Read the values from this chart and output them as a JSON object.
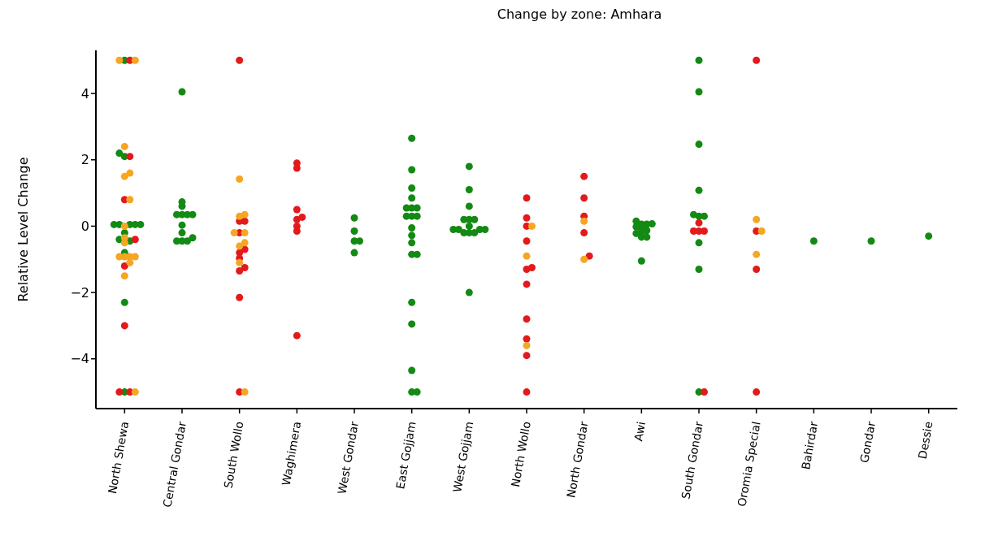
{
  "chart_data": {
    "type": "scatter",
    "title": "Change by zone: Amhara",
    "ylabel": "Relative Level Change",
    "categories": [
      "North Shewa",
      "Central Gondar",
      "South Wollo",
      "Waghimera",
      "West Gondar",
      "East Gojjam",
      "West Gojjam",
      "North Wollo",
      "North Gondar",
      "Awi",
      "South Gondar",
      "Oromia Special",
      "Bahirdar",
      "Gondar",
      "Dessie"
    ],
    "ylim": [
      -5.5,
      5.3
    ],
    "yticks": [
      -4,
      -2,
      0,
      2,
      4
    ],
    "grid": false,
    "legend": false,
    "marker": "circle",
    "series": [
      {
        "color": "#138a13",
        "x": [
          "North Shewa",
          "North Shewa",
          "North Shewa",
          "North Shewa",
          "North Shewa",
          "North Shewa",
          "North Shewa",
          "North Shewa",
          "North Shewa",
          "North Shewa",
          "North Shewa",
          "North Shewa",
          "North Shewa",
          "North Shewa",
          "Central Gondar",
          "Central Gondar",
          "Central Gondar",
          "Central Gondar",
          "Central Gondar",
          "Central Gondar",
          "Central Gondar",
          "Central Gondar",
          "Central Gondar",
          "Central Gondar",
          "Central Gondar",
          "Central Gondar",
          "Central Gondar",
          "West Gondar",
          "West Gondar",
          "West Gondar",
          "West Gondar",
          "West Gondar",
          "East Gojjam",
          "East Gojjam",
          "East Gojjam",
          "East Gojjam",
          "East Gojjam",
          "East Gojjam",
          "East Gojjam",
          "East Gojjam",
          "East Gojjam",
          "East Gojjam",
          "East Gojjam",
          "East Gojjam",
          "East Gojjam",
          "East Gojjam",
          "East Gojjam",
          "East Gojjam",
          "East Gojjam",
          "East Gojjam",
          "East Gojjam",
          "East Gojjam",
          "West Gojjam",
          "West Gojjam",
          "West Gojjam",
          "West Gojjam",
          "West Gojjam",
          "West Gojjam",
          "West Gojjam",
          "West Gojjam",
          "West Gojjam",
          "West Gojjam",
          "West Gojjam",
          "West Gojjam",
          "West Gojjam",
          "West Gojjam",
          "West Gojjam",
          "Awi",
          "Awi",
          "Awi",
          "Awi",
          "Awi",
          "Awi",
          "Awi",
          "Awi",
          "Awi",
          "Awi",
          "Awi",
          "Awi",
          "South Gondar",
          "South Gondar",
          "South Gondar",
          "South Gondar",
          "South Gondar",
          "South Gondar",
          "South Gondar",
          "South Gondar",
          "South Gondar",
          "South Gondar",
          "Bahirdar",
          "Gondar",
          "Dessie"
        ],
        "values": [
          5,
          2.2,
          2.1,
          0.05,
          0.05,
          0.05,
          0.05,
          0.05,
          -0.2,
          -0.45,
          -0.4,
          -0.8,
          -2.3,
          -5,
          4.05,
          0.73,
          0.6,
          0.35,
          0.35,
          0.35,
          0.35,
          0.03,
          -0.2,
          -0.35,
          -0.45,
          -0.45,
          -0.45,
          -0.8,
          0.25,
          -0.15,
          -0.45,
          -0.45,
          -0.5,
          2.65,
          1.7,
          1.15,
          0.85,
          0.55,
          0.55,
          0.55,
          0.3,
          0.3,
          0.3,
          -0.05,
          -0.28,
          -0.85,
          -0.85,
          -2.3,
          -2.95,
          -4.35,
          -5,
          -5,
          1.8,
          1.1,
          0.6,
          0.2,
          0.2,
          0.2,
          0,
          -0.1,
          -0.1,
          -0.1,
          -0.1,
          -0.2,
          -0.2,
          -0.2,
          -2,
          0.15,
          0.06,
          0.06,
          -0.02,
          0.07,
          -0.08,
          -0.13,
          -0.2,
          -0.22,
          -0.33,
          -0.33,
          -1.05,
          5,
          4.05,
          2.47,
          1.08,
          0.3,
          0.3,
          0.35,
          -0.5,
          -1.3,
          -5,
          -0.45,
          -0.45,
          -0.3
        ]
      },
      {
        "color": "#e31a1c",
        "x": [
          "North Shewa",
          "North Shewa",
          "North Shewa",
          "North Shewa",
          "North Shewa",
          "North Shewa",
          "North Shewa",
          "North Shewa",
          "South Wollo",
          "South Wollo",
          "South Wollo",
          "South Wollo",
          "South Wollo",
          "South Wollo",
          "South Wollo",
          "South Wollo",
          "South Wollo",
          "South Wollo",
          "South Wollo",
          "Waghimera",
          "Waghimera",
          "Waghimera",
          "Waghimera",
          "Waghimera",
          "Waghimera",
          "Waghimera",
          "Waghimera",
          "North Wollo",
          "North Wollo",
          "North Wollo",
          "North Wollo",
          "North Wollo",
          "North Wollo",
          "North Wollo",
          "North Wollo",
          "North Wollo",
          "North Wollo",
          "North Wollo",
          "North Gondar",
          "North Gondar",
          "North Gondar",
          "North Gondar",
          "North Gondar",
          "South Gondar",
          "South Gondar",
          "South Gondar",
          "South Gondar",
          "South Gondar",
          "Oromia Special",
          "Oromia Special",
          "Oromia Special",
          "Oromia Special"
        ],
        "values": [
          5,
          2.1,
          0.8,
          -0.4,
          -1.2,
          -3,
          -5,
          -5,
          5,
          0.15,
          0.15,
          -0.2,
          -0.7,
          -0.8,
          -0.97,
          -1.25,
          -1.35,
          -2.15,
          -5,
          1.9,
          1.75,
          0.5,
          0.27,
          0.2,
          0,
          -0.15,
          -3.3,
          0.85,
          0.25,
          0,
          -0.45,
          -1.25,
          -1.3,
          -1.75,
          -2.8,
          -3.4,
          -3.9,
          -5,
          1.5,
          0.85,
          0.3,
          -0.2,
          -0.9,
          0.1,
          -0.15,
          -0.15,
          -0.15,
          -5,
          5,
          -0.15,
          -1.3,
          -5
        ]
      },
      {
        "color": "#f5a623",
        "x": [
          "North Shewa",
          "North Shewa",
          "North Shewa",
          "North Shewa",
          "North Shewa",
          "North Shewa",
          "North Shewa",
          "North Shewa",
          "North Shewa",
          "North Shewa",
          "North Shewa",
          "North Shewa",
          "North Shewa",
          "North Shewa",
          "North Shewa",
          "North Shewa",
          "South Wollo",
          "South Wollo",
          "South Wollo",
          "South Wollo",
          "South Wollo",
          "South Wollo",
          "South Wollo",
          "South Wollo",
          "South Wollo",
          "North Wollo",
          "North Wollo",
          "North Wollo",
          "North Gondar",
          "North Gondar",
          "Oromia Special",
          "Oromia Special",
          "Oromia Special"
        ],
        "values": [
          5,
          5,
          2.4,
          1.6,
          1.5,
          0.8,
          0,
          -0.5,
          -0.35,
          -0.92,
          -0.92,
          -0.92,
          -0.92,
          -1.1,
          -1.5,
          -5,
          1.42,
          0.35,
          0.3,
          -0.2,
          -0.2,
          -0.5,
          -0.6,
          -1.1,
          -5,
          0,
          -0.9,
          -3.6,
          0.15,
          -1,
          0.2,
          -0.15,
          -0.85
        ]
      }
    ]
  }
}
